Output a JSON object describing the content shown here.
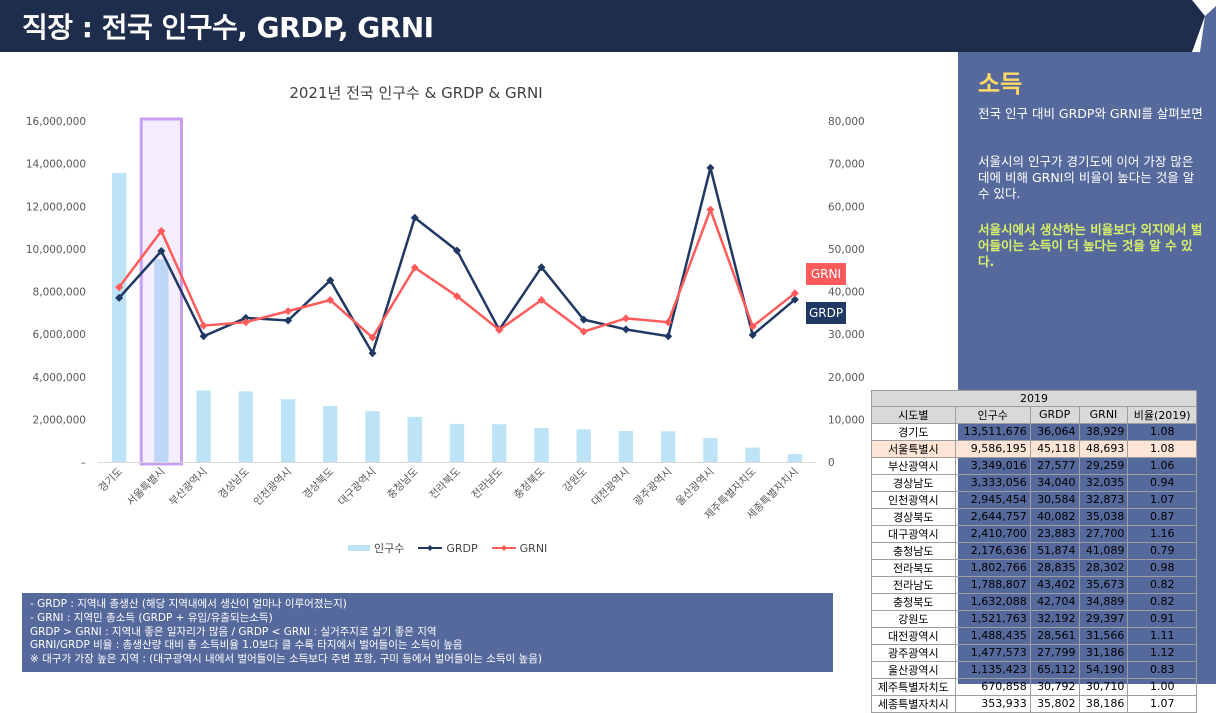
{
  "header": {
    "title": "직장 : 전국 인구수, GRDP, GRNI"
  },
  "side": {
    "title": "소득",
    "p1": "전국 인구 대비 GRDP와 GRNI를 살펴보면",
    "p2": "서울시의 인구가 경기도에 이어 가장 많은 데에 비해 GRNI의 비율이 높다는 것을 알 수 있다.",
    "p3": "서울시에서 생산하는 비율보다 외지에서 벌어들이는 소득이 더 높다는 것을 알 수 있다."
  },
  "tags": {
    "grni": "GRNI",
    "grdp": "GRDP"
  },
  "notes": [
    "- GRDP : 지역내 총생산 (해당 지역내에서 생산이 얼마나 이루어졌는지)",
    "- GRNI : 지역민 총소득 (GRDP + 유입/유출되는소득)",
    "GRDP > GRNI : 지역내 좋은 일자리가 많음 / GRDP < GRNI : 실거주지로 살기 좋은 지역",
    "GRNI/GRDP 비율 : 총생산량 대비 총 소득비율 1.0보다 클 수록 타지에서 벌어들이는 소득이 높음",
    "※ 대구가 가장 높은 지역 : (대구광역시 내에서 벌어들이는 소득보다 주변 포항, 구미 등에서 벌어들이는 소득이 높음)"
  ],
  "table": {
    "year": "2019",
    "headers": [
      "시도별",
      "인구수",
      "GRDP",
      "GRNI",
      "비율(2019)"
    ],
    "rows": [
      [
        "경기도",
        "13,511,676",
        "36,064",
        "38,929",
        "1.08"
      ],
      [
        "서울특별시",
        "9,586,195",
        "45,118",
        "48,693",
        "1.08"
      ],
      [
        "부산광역시",
        "3,349,016",
        "27,577",
        "29,259",
        "1.06"
      ],
      [
        "경상남도",
        "3,333,056",
        "34,040",
        "32,035",
        "0.94"
      ],
      [
        "인천광역시",
        "2,945,454",
        "30,584",
        "32,873",
        "1.07"
      ],
      [
        "경상북도",
        "2,644,757",
        "40,082",
        "35,038",
        "0.87"
      ],
      [
        "대구광역시",
        "2,410,700",
        "23,883",
        "27,700",
        "1.16"
      ],
      [
        "충청남도",
        "2,176,636",
        "51,874",
        "41,089",
        "0.79"
      ],
      [
        "전라북도",
        "1,802,766",
        "28,835",
        "28,302",
        "0.98"
      ],
      [
        "전라남도",
        "1,788,807",
        "43,402",
        "35,673",
        "0.82"
      ],
      [
        "충청북도",
        "1,632,088",
        "42,704",
        "34,889",
        "0.82"
      ],
      [
        "강원도",
        "1,521,763",
        "32,192",
        "29,397",
        "0.91"
      ],
      [
        "대전광역시",
        "1,488,435",
        "28,561",
        "31,566",
        "1.11"
      ],
      [
        "광주광역시",
        "1,477,573",
        "27,799",
        "31,186",
        "1.12"
      ],
      [
        "울산광역시",
        "1,135,423",
        "65,112",
        "54,190",
        "0.83"
      ],
      [
        "제주특별자치도",
        "670,858",
        "30,792",
        "30,710",
        "1.00"
      ],
      [
        "세종특별자치시",
        "353,933",
        "35,802",
        "38,186",
        "1.07"
      ]
    ]
  },
  "chart_data": {
    "type": "bar",
    "title": "2021년 전국 인구수 & GRDP & GRNI",
    "categories": [
      "경기도",
      "서울특별시",
      "부산광역시",
      "경상남도",
      "인천광역시",
      "경상북도",
      "대구광역시",
      "충청남도",
      "전라북도",
      "전라남도",
      "충청북도",
      "강원도",
      "대전광역시",
      "광주광역시",
      "울산광역시",
      "제주특별자치도",
      "세종특별자치시"
    ],
    "series": [
      {
        "name": "인구수",
        "type": "bar",
        "axis": "left",
        "color": "#bde3f6",
        "values": [
          13565450,
          9509458,
          3350380,
          3314183,
          2948375,
          2626609,
          2385412,
          2119257,
          1786855,
          1773828,
          1597427,
          1538492,
          1452251,
          1441611,
          1121592,
          676759,
          371895
        ]
      },
      {
        "name": "GRDP",
        "type": "line",
        "axis": "right",
        "color": "#1f3864",
        "values": [
          38500,
          49500,
          29500,
          33800,
          33200,
          42600,
          25500,
          57300,
          49600,
          31000,
          45700,
          33400,
          31100,
          29500,
          69000,
          29800,
          38100
        ]
      },
      {
        "name": "GRNI",
        "type": "line",
        "axis": "right",
        "color": "#ff5b5b",
        "values": [
          41000,
          54200,
          32000,
          32800,
          35400,
          38000,
          29200,
          45600,
          38900,
          31000,
          38000,
          30600,
          33700,
          32800,
          59200,
          31800,
          39600
        ]
      }
    ],
    "y_left": {
      "min": 0,
      "max": 16000000,
      "ticks": [
        "–",
        "2,000,000",
        "4,000,000",
        "6,000,000",
        "8,000,000",
        "10,000,000",
        "12,000,000",
        "14,000,000",
        "16,000,000"
      ]
    },
    "y_right": {
      "min": 0,
      "max": 80000,
      "ticks": [
        "0",
        "10,000",
        "20,000",
        "30,000",
        "40,000",
        "50,000",
        "60,000",
        "70,000",
        "80,000"
      ]
    },
    "highlight_category": "서울특별시",
    "legend": "bottom",
    "grid": false
  }
}
